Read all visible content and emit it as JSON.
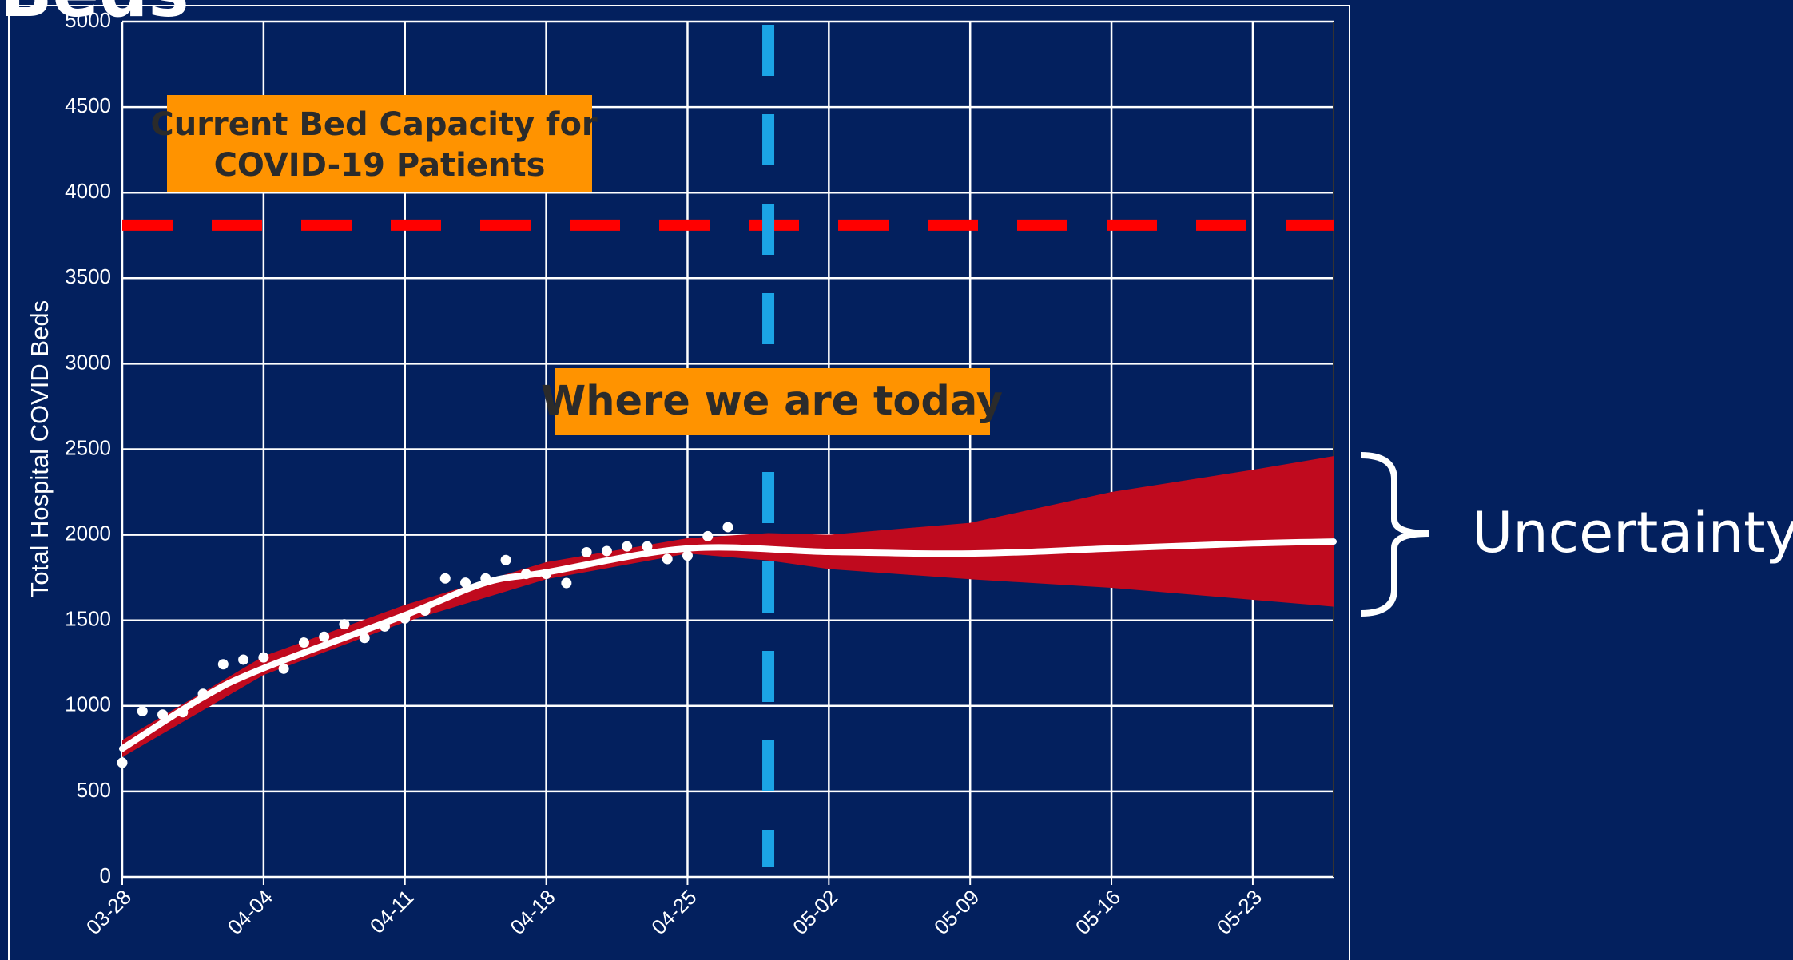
{
  "chart_data": {
    "type": "line",
    "title": "Beds",
    "y_label": "Total Hospital COVID Beds",
    "xlim": [
      "03-28",
      "05-27"
    ],
    "xticks": [
      "03-28",
      "04-04",
      "04-11",
      "04-18",
      "04-25",
      "05-02",
      "05-09",
      "05-16",
      "05-23"
    ],
    "ylim": [
      0,
      5000
    ],
    "yticks": [
      0,
      500,
      1000,
      1500,
      2000,
      2500,
      3000,
      3500,
      4000,
      4500,
      5000
    ],
    "grid": true,
    "points": {
      "color": "#ffffff",
      "x": [
        "03-28",
        "03-29",
        "03-30",
        "03-31",
        "04-01",
        "04-02",
        "04-03",
        "04-04",
        "04-05",
        "04-06",
        "04-07",
        "04-08",
        "04-09",
        "04-10",
        "04-11",
        "04-12",
        "04-13",
        "04-14",
        "04-15",
        "04-16",
        "04-17",
        "04-18",
        "04-19",
        "04-20",
        "04-21",
        "04-22",
        "04-23",
        "04-24",
        "04-25",
        "04-26",
        "04-27"
      ],
      "values": [
        668,
        969,
        949,
        963,
        1070,
        1243,
        1270,
        1283,
        1217,
        1370,
        1404,
        1477,
        1397,
        1464,
        1511,
        1557,
        1745,
        1720,
        1745,
        1852,
        1771,
        1771,
        1718,
        1898,
        1905,
        1932,
        1932,
        1858,
        1878,
        1992,
        2045
      ]
    },
    "fit": {
      "color": "#ffffff",
      "x": [
        "03-28",
        "04-01",
        "04-04",
        "04-11",
        "04-15",
        "04-18",
        "04-25",
        "05-02",
        "05-09",
        "05-16",
        "05-23",
        "05-27"
      ],
      "values": [
        750,
        1050,
        1220,
        1530,
        1720,
        1780,
        1920,
        1900,
        1890,
        1920,
        1950,
        1960
      ]
    },
    "band": {
      "color": "#c00a1e",
      "x": [
        "03-28",
        "04-04",
        "04-11",
        "04-18",
        "04-25",
        "04-29",
        "05-02",
        "05-09",
        "05-16",
        "05-23",
        "05-27"
      ],
      "lower": [
        700,
        1180,
        1490,
        1740,
        1890,
        1850,
        1800,
        1740,
        1690,
        1620,
        1580
      ],
      "upper": [
        800,
        1290,
        1590,
        1840,
        1980,
        2010,
        2000,
        2070,
        2250,
        2380,
        2460
      ]
    },
    "capacity": {
      "value": 3810,
      "color": "#ff0000",
      "label": [
        "Current Bed Capacity for",
        "COVID-19 Patients"
      ]
    },
    "today": {
      "x": "04-29",
      "color": "#1ba4e6",
      "label": "Where we are today"
    },
    "uncertainty_label": "Uncertainty"
  }
}
